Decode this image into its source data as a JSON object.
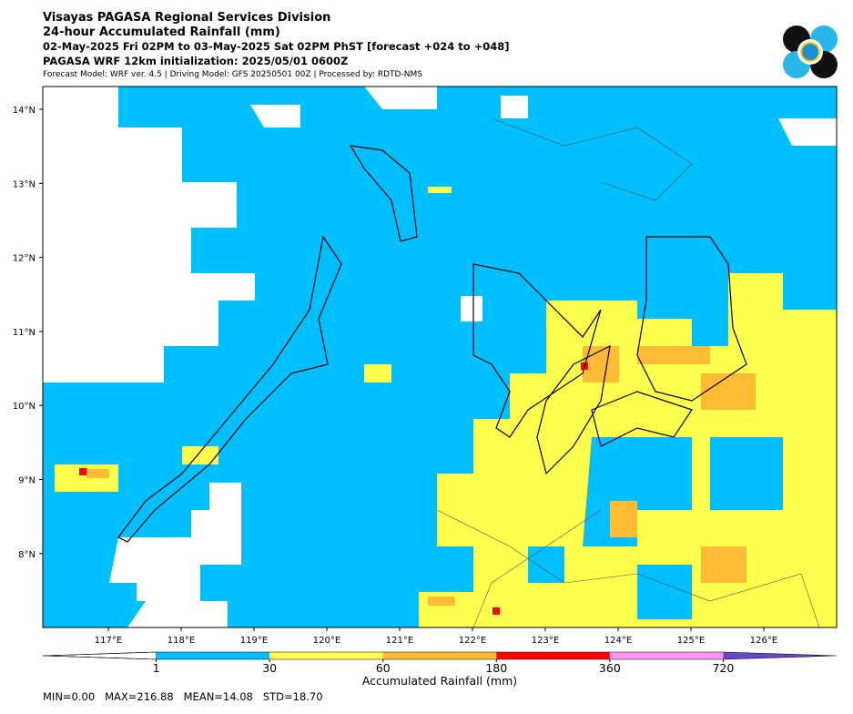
{
  "header": {
    "line1": "Visayas PAGASA Regional Services Division",
    "line2": "24-hour Accumulated Rainfall (mm)",
    "line3": "02-May-2025 Fri 02PM to 03-May-2025 Sat 02PM PhST [forecast +024 to +048]",
    "line4": "PAGASA WRF 12km initialization: 2025/05/01 0600Z",
    "line5": "Forecast Model: WRF ver. 4.5 | Driving Model: GFS 20250501 00Z | Processed by: RDTD-NMS"
  },
  "map": {
    "xticks": [
      {
        "value": 117,
        "label": "117°E"
      },
      {
        "value": 118,
        "label": "118°E"
      },
      {
        "value": 119,
        "label": "119°E"
      },
      {
        "value": 120,
        "label": "120°E"
      },
      {
        "value": 121,
        "label": "121°E"
      },
      {
        "value": 122,
        "label": "122°E"
      },
      {
        "value": 123,
        "label": "123°E"
      },
      {
        "value": 124,
        "label": "124°E"
      },
      {
        "value": 125,
        "label": "125°E"
      },
      {
        "value": 126,
        "label": "126°E"
      }
    ],
    "yticks": [
      {
        "value": 14,
        "label": "14°N"
      },
      {
        "value": 13,
        "label": "13°N"
      },
      {
        "value": 12,
        "label": "12°N"
      },
      {
        "value": 11,
        "label": "11°N"
      },
      {
        "value": 10,
        "label": "10°N"
      },
      {
        "value": 9,
        "label": "9°N"
      },
      {
        "value": 8,
        "label": "8°N"
      }
    ]
  },
  "colorbar": {
    "levels": [
      1,
      30,
      60,
      180,
      360,
      720
    ],
    "colors": [
      "#00bfff",
      "#ffff4d",
      "#ffbb33",
      "#ff0000",
      "#ff99f5",
      "#6a45cf"
    ],
    "label": "Accumulated Rainfall (mm)"
  },
  "stats": "MIN=0.00   MAX=216.88   MEAN=14.08   STD=18.70"
}
